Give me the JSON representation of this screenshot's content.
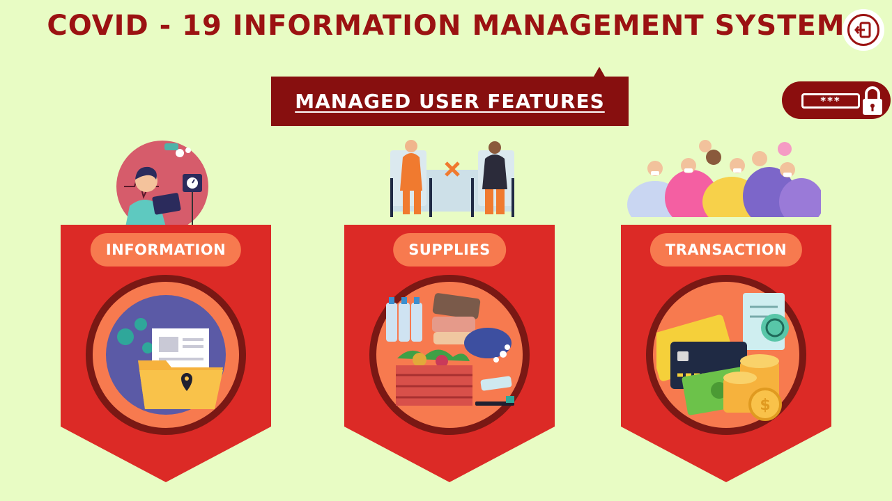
{
  "header": {
    "title": "COVID - 19 INFORMATION MANAGEMENT SYSTEM",
    "logout_icon": "logout-icon"
  },
  "section": {
    "subtitle": "MANAGED USER FEATURES"
  },
  "password_button": {
    "mask": "***",
    "icon": "lock-icon"
  },
  "cards": [
    {
      "label": "INFORMATION",
      "icon": "folder-document-icon",
      "illustration": "nurse-illustration"
    },
    {
      "label": "SUPPLIES",
      "icon": "supplies-basket-icon",
      "illustration": "social-distance-illustration"
    },
    {
      "label": "TRANSACTION",
      "icon": "payment-money-icon",
      "illustration": "crowd-illustration"
    }
  ],
  "colors": {
    "background": "#e8fcc4",
    "title": "#9b1212",
    "banner": "#870f0f",
    "card": "#dc2a26",
    "label_pill": "#f77a4f"
  }
}
